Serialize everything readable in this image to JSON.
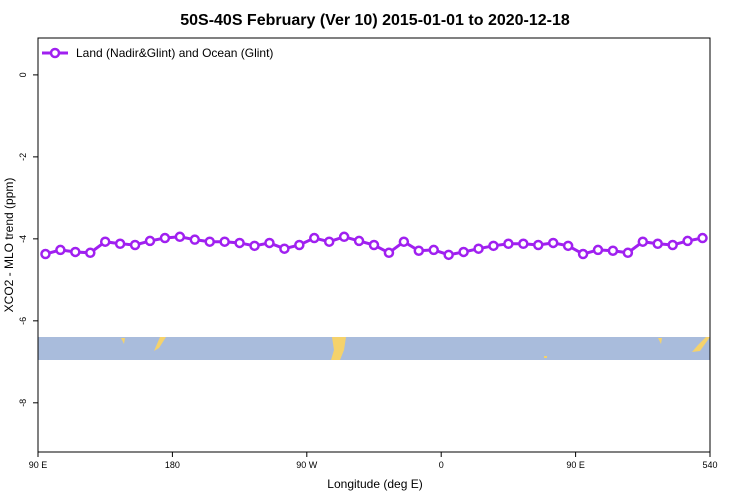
{
  "chart_data": {
    "type": "line",
    "title": "50S-40S February (Ver 10)   2015-01-01 to 2020-12-18",
    "x_label": "Longitude (deg E)",
    "y_label": "XCO2 - MLO trend (ppm)",
    "x": [
      95,
      105,
      115,
      125,
      135,
      145,
      155,
      165,
      175,
      185,
      195,
      205,
      215,
      225,
      235,
      245,
      255,
      265,
      275,
      285,
      295,
      305,
      315,
      325,
      335,
      345,
      355,
      365,
      375,
      385,
      395,
      405,
      415,
      425,
      435,
      445,
      455,
      465,
      475,
      485,
      495,
      505,
      515,
      525,
      535
    ],
    "series": [
      {
        "name": "Land (Nadir&Glint) and Ocean (Glint)",
        "color": "#a020f0",
        "values": [
          -4.37,
          -4.27,
          -4.32,
          -4.34,
          -4.07,
          -4.12,
          -4.15,
          -4.05,
          -3.98,
          -3.95,
          -4.02,
          -4.07,
          -4.07,
          -4.1,
          -4.17,
          -4.1,
          -4.24,
          -4.15,
          -3.98,
          -4.07,
          -3.95,
          -4.05,
          -4.15,
          -4.34,
          -4.07,
          -4.29,
          -4.27,
          -4.39,
          -4.32,
          -4.24,
          -4.17,
          -4.12,
          -4.12,
          -4.15,
          -4.1,
          -4.17,
          -4.37,
          -4.27,
          -4.29,
          -4.34,
          -4.07,
          -4.12,
          -4.15,
          -4.05,
          -3.98
        ]
      }
    ],
    "xlim": [
      90,
      540
    ],
    "xticks": [
      {
        "value": 90,
        "label": "90 E"
      },
      180,
      {
        "value": 270,
        "label": "90 W"
      },
      {
        "value": 360,
        "label": "0"
      },
      {
        "value": 450,
        "label": "90 E"
      },
      540
    ],
    "ylim": [
      -9.2,
      0.9
    ],
    "yticks": [
      0,
      -2,
      -4,
      -6,
      -8
    ],
    "legend": "top-left",
    "grid": false
  }
}
